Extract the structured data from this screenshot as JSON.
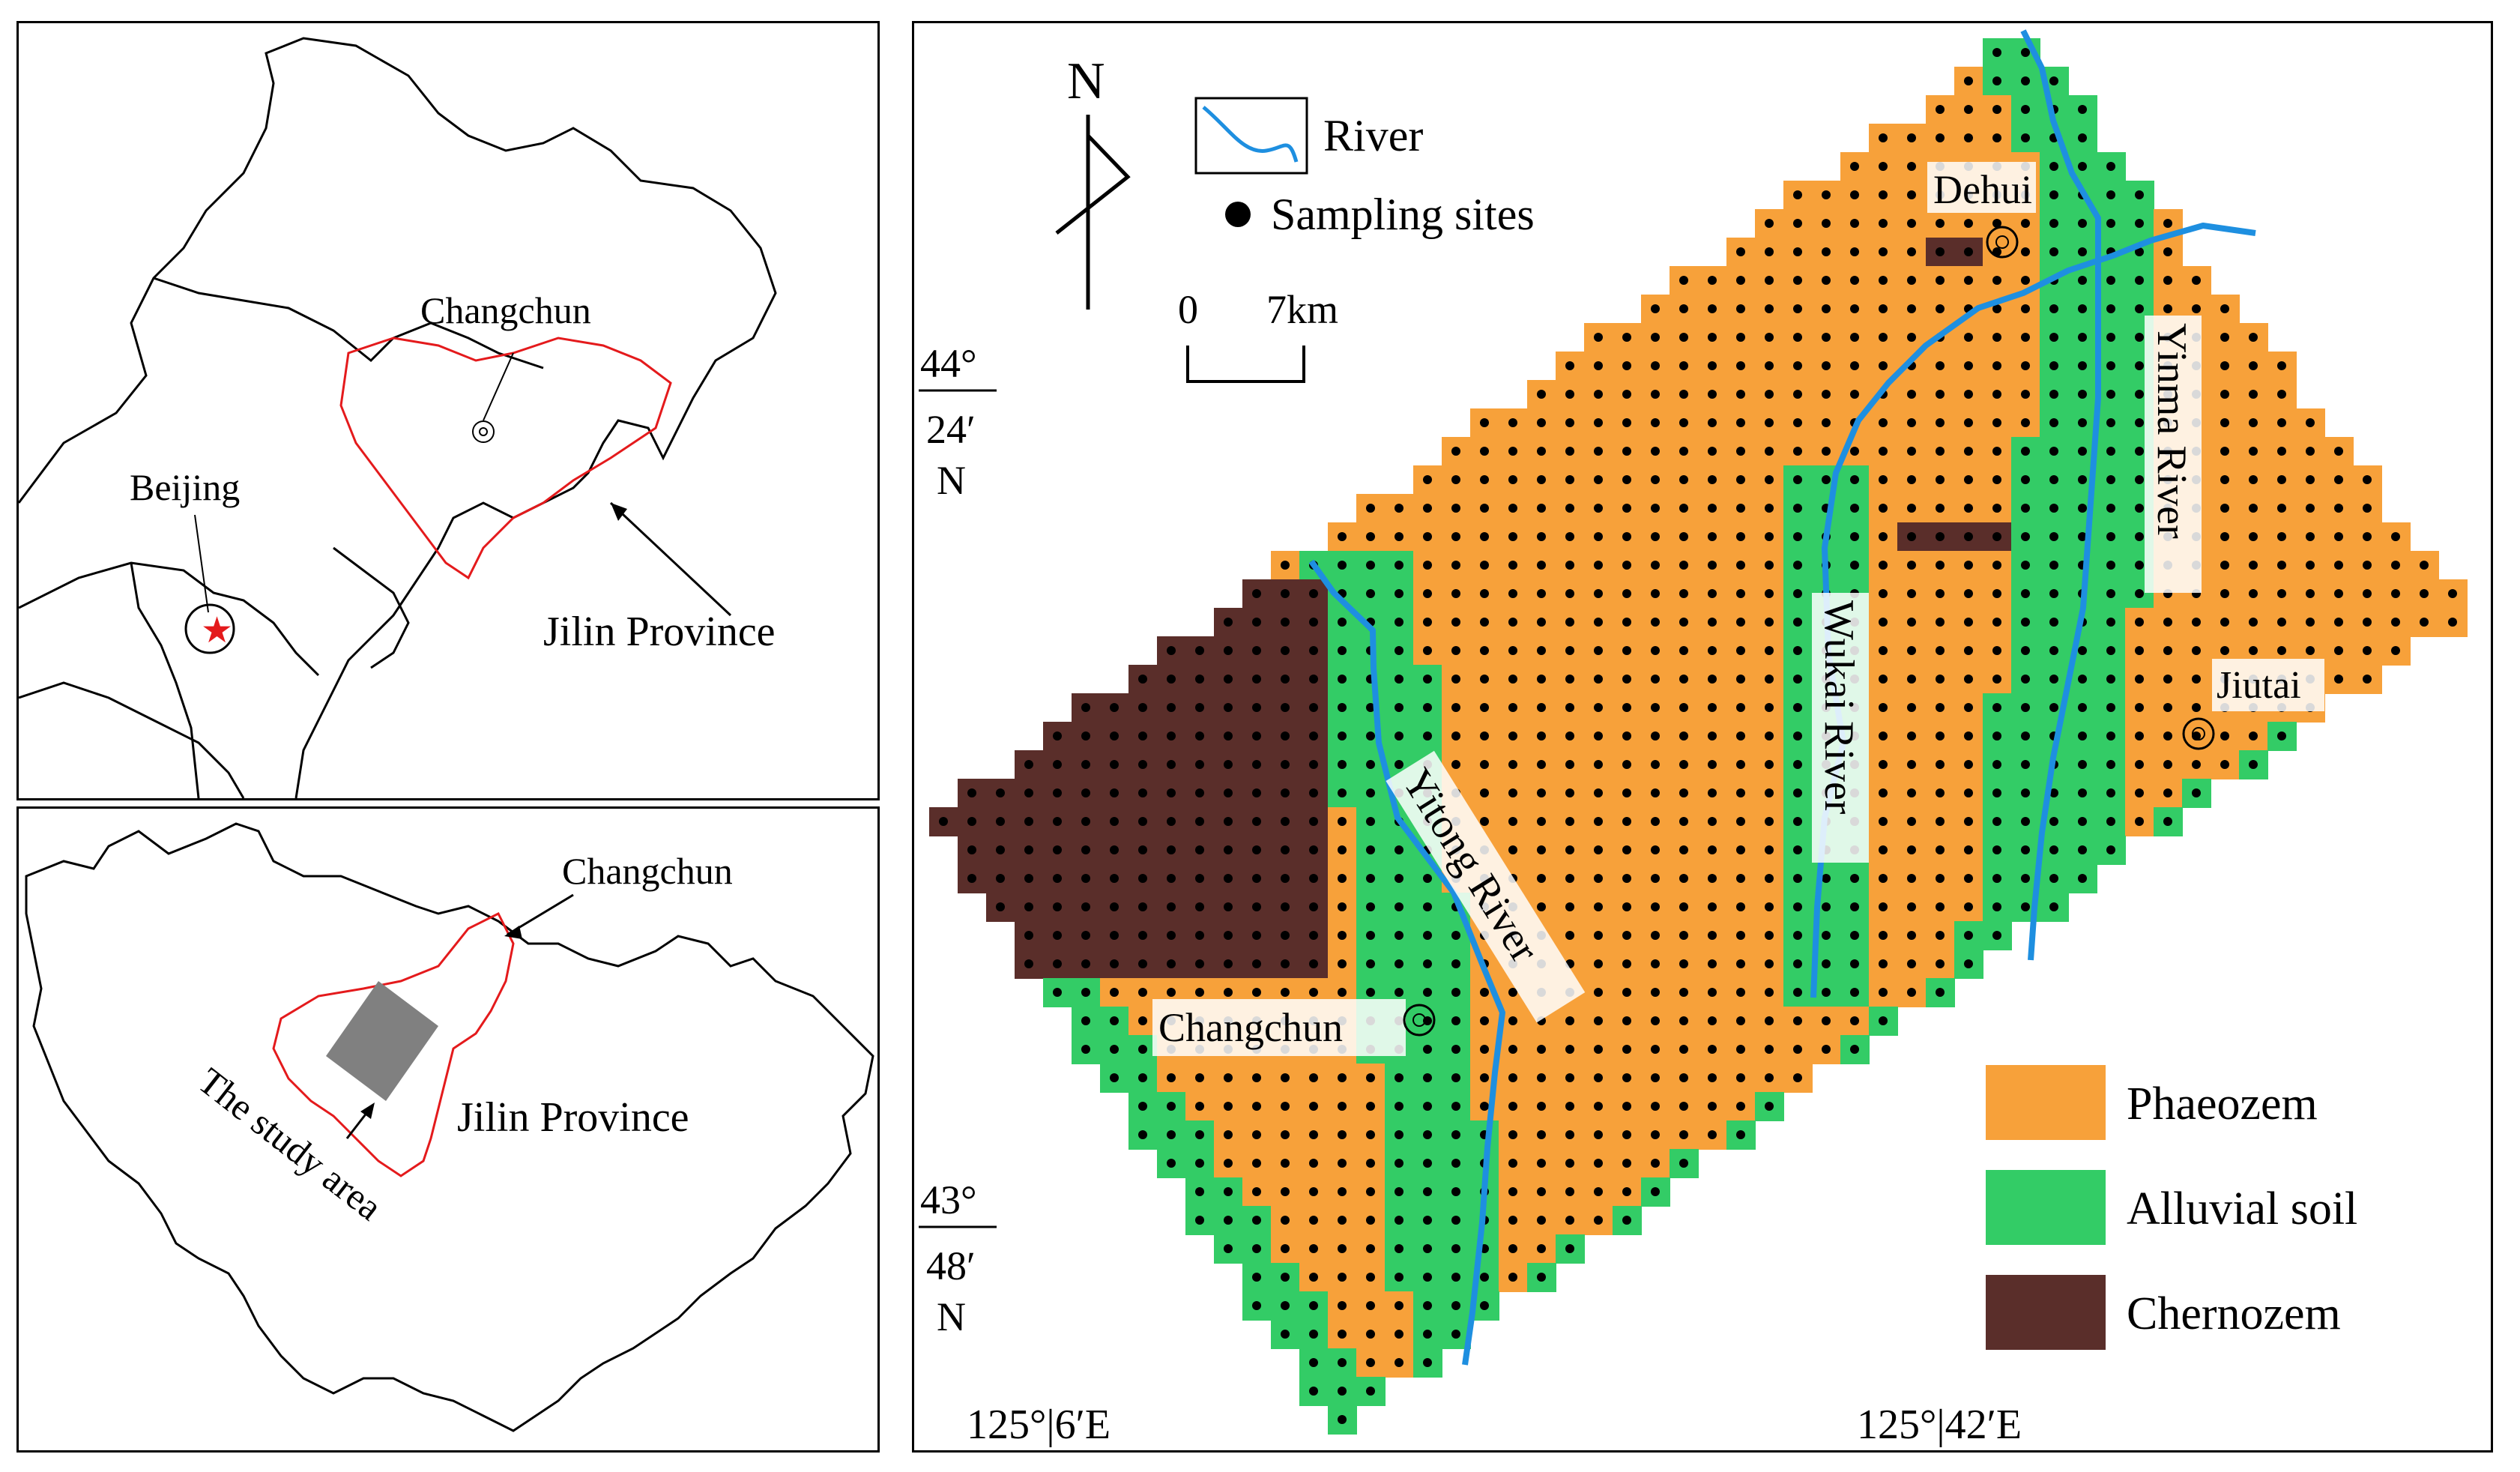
{
  "colors": {
    "phaeozem": "#F7A13A",
    "alluvial": "#33CC66",
    "chernozem": "#5A2E2A",
    "river": "#1E8FE0",
    "boundary_red": "#E41A1C",
    "study_area_gray": "#808080"
  },
  "top_left": {
    "capital_label": "Beijing",
    "city_label": "Changchun",
    "province_label": "Jilin Province"
  },
  "bottom_left": {
    "city_label": "Changchun",
    "study_area_label": "The study area",
    "province_label": "Jilin  Province"
  },
  "main": {
    "north_label": "N",
    "legend_river": "River",
    "legend_sites": "Sampling sites",
    "scale_zero": "0",
    "scale_dist": "7km",
    "lat_top": [
      "44°",
      "24′",
      "N"
    ],
    "lat_bottom": [
      "43°",
      "48′",
      "N"
    ],
    "lon_left": "125°|6′E",
    "lon_right": "125°|42′E",
    "cities": {
      "dehui": "Dehui",
      "jiutai": "Jiutai",
      "changchun": "Changchun"
    },
    "rivers": {
      "yitong": "Yitong  River",
      "wukai": "Wukai River",
      "yinma": "Yinma River"
    },
    "soil_legend": [
      "Phaeozem",
      "Alluvial  soil",
      "Chernozem"
    ]
  }
}
